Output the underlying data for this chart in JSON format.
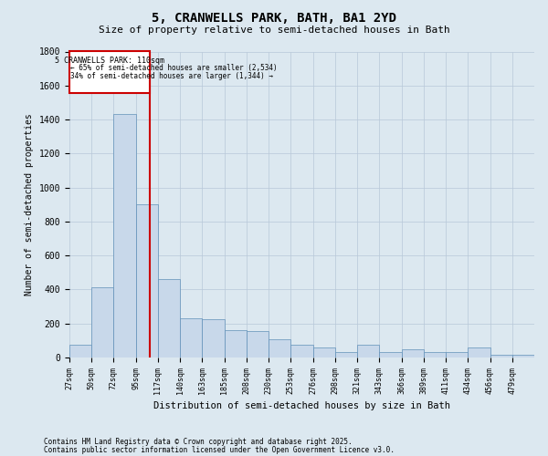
{
  "title": "5, CRANWELLS PARK, BATH, BA1 2YD",
  "subtitle": "Size of property relative to semi-detached houses in Bath",
  "xlabel": "Distribution of semi-detached houses by size in Bath",
  "ylabel": "Number of semi-detached properties",
  "property_size_idx": 3.65,
  "annotation_title": "5 CRANWELLS PARK: 110sqm",
  "annotation_smaller": "← 65% of semi-detached houses are smaller (2,534)",
  "annotation_larger": "34% of semi-detached houses are larger (1,344) →",
  "footnote1": "Contains HM Land Registry data © Crown copyright and database right 2025.",
  "footnote2": "Contains public sector information licensed under the Open Government Licence v3.0.",
  "bin_labels": [
    "27sqm",
    "50sqm",
    "72sqm",
    "95sqm",
    "117sqm",
    "140sqm",
    "163sqm",
    "185sqm",
    "208sqm",
    "230sqm",
    "253sqm",
    "276sqm",
    "298sqm",
    "321sqm",
    "343sqm",
    "366sqm",
    "389sqm",
    "411sqm",
    "434sqm",
    "456sqm",
    "479sqm"
  ],
  "bar_values": [
    75,
    415,
    1430,
    900,
    460,
    230,
    225,
    160,
    155,
    105,
    75,
    60,
    30,
    75,
    30,
    50,
    30,
    30,
    60,
    15,
    15
  ],
  "bar_color": "#c8d8ea",
  "bar_edge_color": "#6090b8",
  "grid_color": "#b8c8d8",
  "bg_color": "#dce8f0",
  "vline_color": "#cc0000",
  "box_color": "#cc0000",
  "ylim": [
    0,
    1800
  ],
  "yticks": [
    0,
    200,
    400,
    600,
    800,
    1000,
    1200,
    1400,
    1600,
    1800
  ]
}
